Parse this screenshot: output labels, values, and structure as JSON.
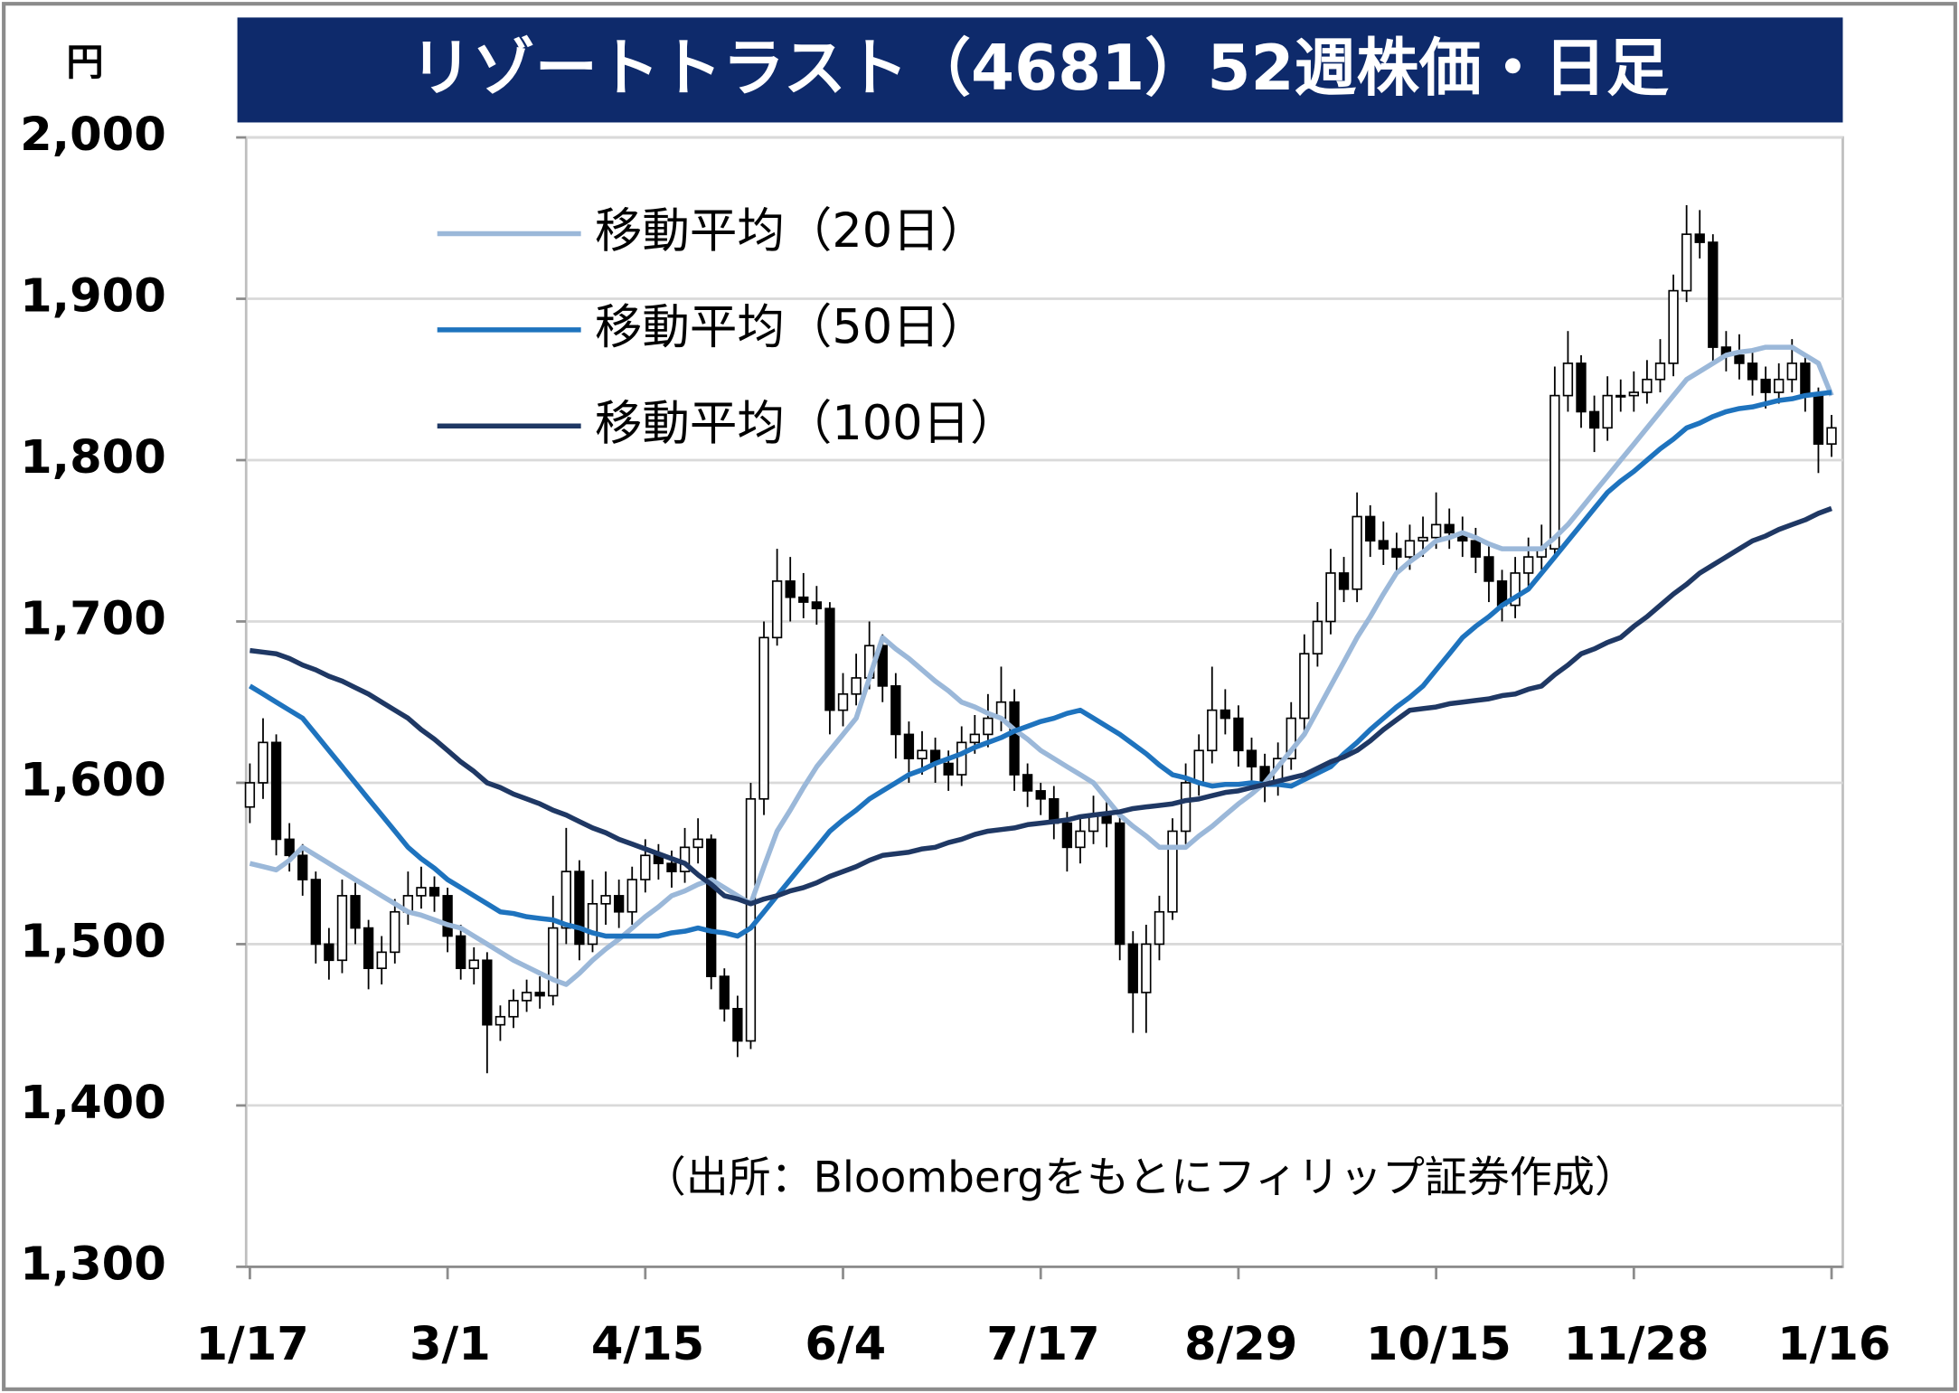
{
  "chart_data": {
    "type": "candlestick",
    "title": "リゾートトラスト（4681）52週株価・日足",
    "y_unit": "円",
    "note": "（出所：Bloombergをもとにフィリップ証券作成）",
    "categories": [
      "1/17",
      null,
      null,
      null,
      null,
      null,
      null,
      null,
      null,
      null,
      null,
      null,
      null,
      null,
      null,
      "3/1",
      null,
      null,
      null,
      null,
      null,
      null,
      null,
      null,
      null,
      null,
      null,
      null,
      null,
      null,
      "4/15",
      null,
      null,
      null,
      null,
      null,
      null,
      null,
      null,
      null,
      null,
      null,
      null,
      null,
      null,
      "6/4",
      null,
      null,
      null,
      null,
      null,
      null,
      null,
      null,
      null,
      null,
      null,
      null,
      null,
      null,
      "7/17",
      null,
      null,
      null,
      null,
      null,
      null,
      null,
      null,
      null,
      null,
      null,
      null,
      null,
      null,
      "8/29",
      null,
      null,
      null,
      null,
      null,
      null,
      null,
      null,
      null,
      null,
      null,
      null,
      null,
      null,
      "10/15",
      null,
      null,
      null,
      null,
      null,
      null,
      null,
      null,
      null,
      null,
      null,
      null,
      null,
      null,
      "11/28",
      null,
      null,
      null,
      null,
      null,
      null,
      null,
      null,
      null,
      null,
      null,
      null,
      null,
      null,
      "1/16"
    ],
    "open": [
      1585,
      1600,
      1625,
      1565,
      1555,
      1540,
      1500,
      1490,
      1530,
      1510,
      1485,
      1495,
      1520,
      1530,
      1535,
      1530,
      1505,
      1485,
      1490,
      1450,
      1455,
      1465,
      1470,
      1468,
      1510,
      1545,
      1500,
      1525,
      1530,
      1520,
      1540,
      1555,
      1550,
      1545,
      1560,
      1565,
      1480,
      1460,
      1440,
      1590,
      1690,
      1725,
      1715,
      1712,
      1708,
      1645,
      1655,
      1665,
      1685,
      1660,
      1630,
      1615,
      1620,
      1612,
      1605,
      1625,
      1630,
      1640,
      1650,
      1605,
      1595,
      1590,
      1575,
      1560,
      1570,
      1580,
      1575,
      1500,
      1470,
      1500,
      1520,
      1570,
      1600,
      1620,
      1645,
      1640,
      1620,
      1610,
      1600,
      1615,
      1640,
      1680,
      1700,
      1730,
      1720,
      1765,
      1750,
      1745,
      1740,
      1750,
      1752,
      1760,
      1755,
      1750,
      1740,
      1725,
      1710,
      1730,
      1740,
      1745,
      1840,
      1860,
      1830,
      1820,
      1840,
      1840,
      1842,
      1850,
      1860,
      1905,
      1940,
      1935,
      1870,
      1865,
      1860,
      1850,
      1842,
      1850,
      1860,
      1840,
      1810
    ],
    "high": [
      1612,
      1640,
      1630,
      1575,
      1562,
      1545,
      1510,
      1540,
      1538,
      1515,
      1505,
      1528,
      1545,
      1548,
      1542,
      1535,
      1512,
      1498,
      1495,
      1462,
      1472,
      1478,
      1480,
      1530,
      1572,
      1552,
      1540,
      1545,
      1540,
      1548,
      1565,
      1562,
      1558,
      1572,
      1578,
      1568,
      1485,
      1468,
      1600,
      1700,
      1745,
      1740,
      1730,
      1722,
      1712,
      1668,
      1680,
      1700,
      1692,
      1668,
      1638,
      1632,
      1628,
      1620,
      1635,
      1642,
      1655,
      1672,
      1658,
      1612,
      1600,
      1598,
      1582,
      1580,
      1592,
      1590,
      1580,
      1508,
      1512,
      1530,
      1578,
      1612,
      1630,
      1672,
      1658,
      1648,
      1628,
      1618,
      1625,
      1650,
      1692,
      1712,
      1745,
      1740,
      1780,
      1772,
      1762,
      1755,
      1760,
      1765,
      1780,
      1770,
      1765,
      1758,
      1748,
      1732,
      1740,
      1752,
      1760,
      1858,
      1880,
      1865,
      1840,
      1852,
      1850,
      1855,
      1862,
      1875,
      1915,
      1958,
      1955,
      1940,
      1880,
      1878,
      1868,
      1858,
      1860,
      1875,
      1865,
      1845,
      1828
    ],
    "low": [
      1575,
      1590,
      1555,
      1545,
      1530,
      1488,
      1478,
      1482,
      1500,
      1472,
      1475,
      1488,
      1512,
      1522,
      1520,
      1495,
      1478,
      1475,
      1420,
      1440,
      1448,
      1458,
      1460,
      1462,
      1500,
      1490,
      1495,
      1512,
      1510,
      1512,
      1532,
      1540,
      1535,
      1538,
      1550,
      1472,
      1452,
      1430,
      1435,
      1580,
      1685,
      1700,
      1702,
      1698,
      1630,
      1635,
      1648,
      1658,
      1650,
      1615,
      1600,
      1605,
      1600,
      1595,
      1598,
      1618,
      1622,
      1632,
      1595,
      1585,
      1580,
      1565,
      1545,
      1550,
      1562,
      1560,
      1490,
      1445,
      1445,
      1490,
      1515,
      1562,
      1592,
      1612,
      1630,
      1610,
      1598,
      1588,
      1592,
      1608,
      1632,
      1672,
      1692,
      1712,
      1712,
      1740,
      1735,
      1730,
      1732,
      1740,
      1745,
      1745,
      1740,
      1730,
      1712,
      1700,
      1702,
      1722,
      1732,
      1740,
      1830,
      1820,
      1805,
      1812,
      1830,
      1830,
      1835,
      1842,
      1852,
      1898,
      1925,
      1860,
      1855,
      1850,
      1840,
      1832,
      1835,
      1842,
      1830,
      1792,
      1802
    ],
    "close": [
      1600,
      1625,
      1565,
      1555,
      1540,
      1500,
      1490,
      1530,
      1510,
      1485,
      1495,
      1520,
      1530,
      1535,
      1530,
      1505,
      1485,
      1490,
      1450,
      1455,
      1465,
      1470,
      1468,
      1510,
      1545,
      1500,
      1525,
      1530,
      1520,
      1540,
      1555,
      1550,
      1545,
      1560,
      1565,
      1480,
      1460,
      1440,
      1590,
      1690,
      1725,
      1715,
      1712,
      1708,
      1645,
      1655,
      1665,
      1685,
      1660,
      1630,
      1615,
      1620,
      1612,
      1605,
      1625,
      1630,
      1640,
      1650,
      1605,
      1595,
      1590,
      1575,
      1560,
      1570,
      1580,
      1575,
      1500,
      1470,
      1500,
      1520,
      1570,
      1600,
      1620,
      1645,
      1640,
      1620,
      1610,
      1600,
      1615,
      1640,
      1680,
      1700,
      1730,
      1720,
      1765,
      1750,
      1745,
      1740,
      1750,
      1752,
      1760,
      1755,
      1750,
      1740,
      1725,
      1710,
      1730,
      1740,
      1745,
      1840,
      1860,
      1830,
      1820,
      1840,
      1840,
      1842,
      1850,
      1860,
      1905,
      1940,
      1935,
      1870,
      1865,
      1860,
      1850,
      1842,
      1850,
      1860,
      1840,
      1810,
      1820
    ],
    "up_color": "#ffffff",
    "down_color": "#000000",
    "series": [
      {
        "name": "移動平均（20日）",
        "color": "#9bb8d9",
        "values": [
          1550,
          1548,
          1546,
          1552,
          1560,
          1555,
          1550,
          1545,
          1540,
          1535,
          1530,
          1525,
          1520,
          1518,
          1515,
          1512,
          1510,
          1505,
          1500,
          1495,
          1490,
          1486,
          1482,
          1478,
          1475,
          1482,
          1490,
          1497,
          1503,
          1510,
          1517,
          1523,
          1530,
          1533,
          1537,
          1540,
          1535,
          1530,
          1525,
          1548,
          1570,
          1583,
          1597,
          1610,
          1620,
          1630,
          1640,
          1665,
          1690,
          1683,
          1677,
          1670,
          1663,
          1657,
          1650,
          1647,
          1643,
          1640,
          1633,
          1627,
          1620,
          1615,
          1610,
          1605,
          1600,
          1590,
          1580,
          1573,
          1567,
          1560,
          1560,
          1560,
          1567,
          1573,
          1580,
          1587,
          1593,
          1600,
          1610,
          1620,
          1630,
          1645,
          1660,
          1675,
          1690,
          1703,
          1717,
          1730,
          1737,
          1743,
          1750,
          1752,
          1755,
          1752,
          1748,
          1745,
          1745,
          1745,
          1745,
          1752,
          1760,
          1770,
          1780,
          1790,
          1800,
          1810,
          1820,
          1830,
          1840,
          1850,
          1855,
          1860,
          1865,
          1867,
          1868,
          1870,
          1870,
          1870,
          1865,
          1860,
          1840
        ]
      },
      {
        "name": "移動平均（50日）",
        "color": "#1e73be",
        "values": [
          1660,
          1655,
          1650,
          1645,
          1640,
          1630,
          1620,
          1610,
          1600,
          1590,
          1580,
          1570,
          1560,
          1553,
          1547,
          1540,
          1535,
          1530,
          1525,
          1520,
          1519,
          1517,
          1516,
          1515,
          1512,
          1510,
          1507,
          1505,
          1505,
          1505,
          1505,
          1505,
          1507,
          1508,
          1510,
          1508,
          1507,
          1505,
          1510,
          1520,
          1530,
          1540,
          1550,
          1560,
          1570,
          1577,
          1583,
          1590,
          1595,
          1600,
          1605,
          1608,
          1612,
          1615,
          1618,
          1622,
          1625,
          1628,
          1632,
          1635,
          1638,
          1640,
          1643,
          1645,
          1640,
          1635,
          1630,
          1624,
          1618,
          1611,
          1605,
          1603,
          1600,
          1598,
          1599,
          1599,
          1600,
          1599,
          1599,
          1598,
          1602,
          1606,
          1610,
          1618,
          1625,
          1633,
          1640,
          1647,
          1653,
          1660,
          1670,
          1680,
          1690,
          1697,
          1703,
          1710,
          1715,
          1720,
          1730,
          1740,
          1750,
          1760,
          1770,
          1780,
          1787,
          1793,
          1800,
          1807,
          1813,
          1820,
          1823,
          1827,
          1830,
          1832,
          1833,
          1835,
          1837,
          1838,
          1840,
          1841,
          1842
        ]
      },
      {
        "name": "移動平均（100日）",
        "color": "#1f3864",
        "values": [
          1682,
          1681,
          1680,
          1677,
          1673,
          1670,
          1666,
          1663,
          1659,
          1655,
          1650,
          1645,
          1640,
          1633,
          1627,
          1620,
          1613,
          1607,
          1600,
          1597,
          1593,
          1590,
          1587,
          1583,
          1580,
          1576,
          1572,
          1569,
          1565,
          1562,
          1559,
          1556,
          1553,
          1550,
          1543,
          1537,
          1530,
          1528,
          1525,
          1528,
          1530,
          1533,
          1535,
          1538,
          1542,
          1545,
          1548,
          1552,
          1555,
          1556,
          1557,
          1559,
          1560,
          1563,
          1565,
          1568,
          1570,
          1571,
          1572,
          1574,
          1575,
          1576,
          1577,
          1579,
          1580,
          1581,
          1582,
          1584,
          1585,
          1586,
          1587,
          1589,
          1590,
          1592,
          1594,
          1595,
          1597,
          1599,
          1601,
          1603,
          1605,
          1609,
          1613,
          1616,
          1620,
          1626,
          1633,
          1639,
          1645,
          1646,
          1647,
          1649,
          1650,
          1651,
          1652,
          1654,
          1655,
          1658,
          1660,
          1667,
          1673,
          1680,
          1683,
          1687,
          1690,
          1697,
          1703,
          1710,
          1717,
          1723,
          1730,
          1735,
          1740,
          1745,
          1750,
          1753,
          1757,
          1760,
          1763,
          1767,
          1770
        ]
      }
    ],
    "ylim": [
      1300,
      2000
    ],
    "yticks": [
      {
        "value": 1300,
        "label": "1,300"
      },
      {
        "value": 1400,
        "label": "1,400"
      },
      {
        "value": 1500,
        "label": "1,500"
      },
      {
        "value": 1600,
        "label": "1,600"
      },
      {
        "value": 1700,
        "label": "1,700"
      },
      {
        "value": 1800,
        "label": "1,800"
      },
      {
        "value": 1900,
        "label": "1,900"
      },
      {
        "value": 2000,
        "label": "2,000"
      }
    ],
    "grid": true
  }
}
